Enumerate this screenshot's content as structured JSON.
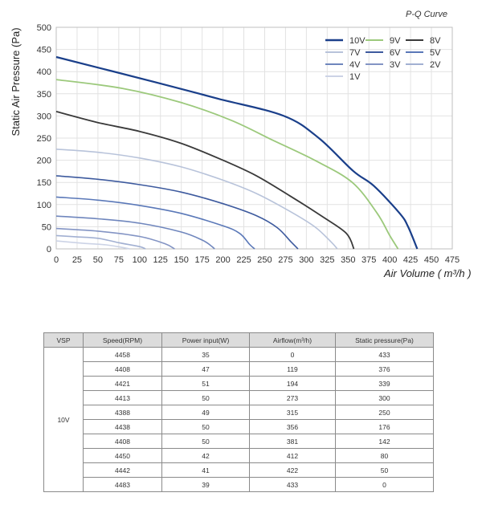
{
  "chart_data": {
    "type": "line",
    "title": "P-Q Curve",
    "xlabel": "Air Volume ( m³/h )",
    "ylabel": "Static Air Pressure  (Pa)",
    "xlim": [
      0,
      475
    ],
    "ylim": [
      0,
      500
    ],
    "xticks": [
      0,
      25,
      50,
      75,
      100,
      125,
      150,
      175,
      200,
      225,
      250,
      275,
      300,
      325,
      350,
      375,
      400,
      425,
      450,
      475
    ],
    "yticks": [
      0,
      50,
      100,
      150,
      200,
      250,
      300,
      350,
      400,
      450,
      500
    ],
    "grid": true,
    "legend_position": "top-right",
    "series": [
      {
        "name": "10V",
        "color": "#1a3f8a",
        "width": 2.2,
        "x": [
          0,
          119,
          194,
          273,
          315,
          356,
          381,
          412,
          422,
          433
        ],
        "y": [
          433,
          376,
          339,
          300,
          250,
          176,
          142,
          80,
          50,
          0
        ]
      },
      {
        "name": "9V",
        "color": "#9cc97c",
        "width": 1.8,
        "x": [
          0,
          80,
          150,
          210,
          260,
          310,
          355,
          385,
          400,
          410
        ],
        "y": [
          382,
          362,
          330,
          290,
          245,
          200,
          150,
          80,
          30,
          0
        ]
      },
      {
        "name": "8V",
        "color": "#3a3a3a",
        "width": 1.8,
        "x": [
          0,
          50,
          100,
          150,
          200,
          240,
          280,
          320,
          348,
          357
        ],
        "y": [
          310,
          285,
          265,
          238,
          200,
          165,
          120,
          72,
          35,
          0
        ]
      },
      {
        "name": "7V",
        "color": "#b8c3da",
        "width": 1.6,
        "x": [
          0,
          50,
          100,
          150,
          200,
          240,
          280,
          310,
          330,
          337
        ],
        "y": [
          225,
          218,
          205,
          185,
          155,
          125,
          85,
          50,
          15,
          0
        ]
      },
      {
        "name": "6V",
        "color": "#3d5a9e",
        "width": 1.6,
        "x": [
          0,
          50,
          100,
          150,
          200,
          240,
          265,
          282,
          290
        ],
        "y": [
          165,
          157,
          145,
          128,
          102,
          75,
          48,
          15,
          0
        ]
      },
      {
        "name": "5V",
        "color": "#5a78b8",
        "width": 1.6,
        "x": [
          0,
          50,
          100,
          150,
          200,
          220,
          232,
          238
        ],
        "y": [
          117,
          110,
          98,
          80,
          52,
          35,
          10,
          0
        ]
      },
      {
        "name": "4V",
        "color": "#6f86bd",
        "width": 1.6,
        "x": [
          0,
          50,
          100,
          150,
          175,
          185,
          190
        ],
        "y": [
          74,
          68,
          58,
          38,
          20,
          8,
          0
        ]
      },
      {
        "name": "3V",
        "color": "#8394c4",
        "width": 1.6,
        "x": [
          0,
          50,
          100,
          130,
          142
        ],
        "y": [
          46,
          40,
          28,
          12,
          0
        ]
      },
      {
        "name": "2V",
        "color": "#a2b0d2",
        "width": 1.6,
        "x": [
          0,
          25,
          50,
          75,
          100,
          107
        ],
        "y": [
          30,
          27,
          24,
          14,
          5,
          0
        ]
      },
      {
        "name": "1V",
        "color": "#ccd3e6",
        "width": 1.6,
        "x": [
          0,
          30,
          60,
          80,
          88
        ],
        "y": [
          18,
          13,
          9,
          3,
          0
        ]
      }
    ]
  },
  "table": {
    "headers": [
      "VSP",
      "Speed(RPM)",
      "Power input(W)",
      "Airflow(m³/h)",
      "Static pressure(Pa)"
    ],
    "vsp": "10V",
    "rows": [
      [
        "4458",
        "35",
        "0",
        "433"
      ],
      [
        "4408",
        "47",
        "119",
        "376"
      ],
      [
        "4421",
        "51",
        "194",
        "339"
      ],
      [
        "4413",
        "50",
        "273",
        "300"
      ],
      [
        "4388",
        "49",
        "315",
        "250"
      ],
      [
        "4438",
        "50",
        "356",
        "176"
      ],
      [
        "4408",
        "50",
        "381",
        "142"
      ],
      [
        "4450",
        "42",
        "412",
        "80"
      ],
      [
        "4442",
        "41",
        "422",
        "50"
      ],
      [
        "4483",
        "39",
        "433",
        "0"
      ]
    ]
  }
}
